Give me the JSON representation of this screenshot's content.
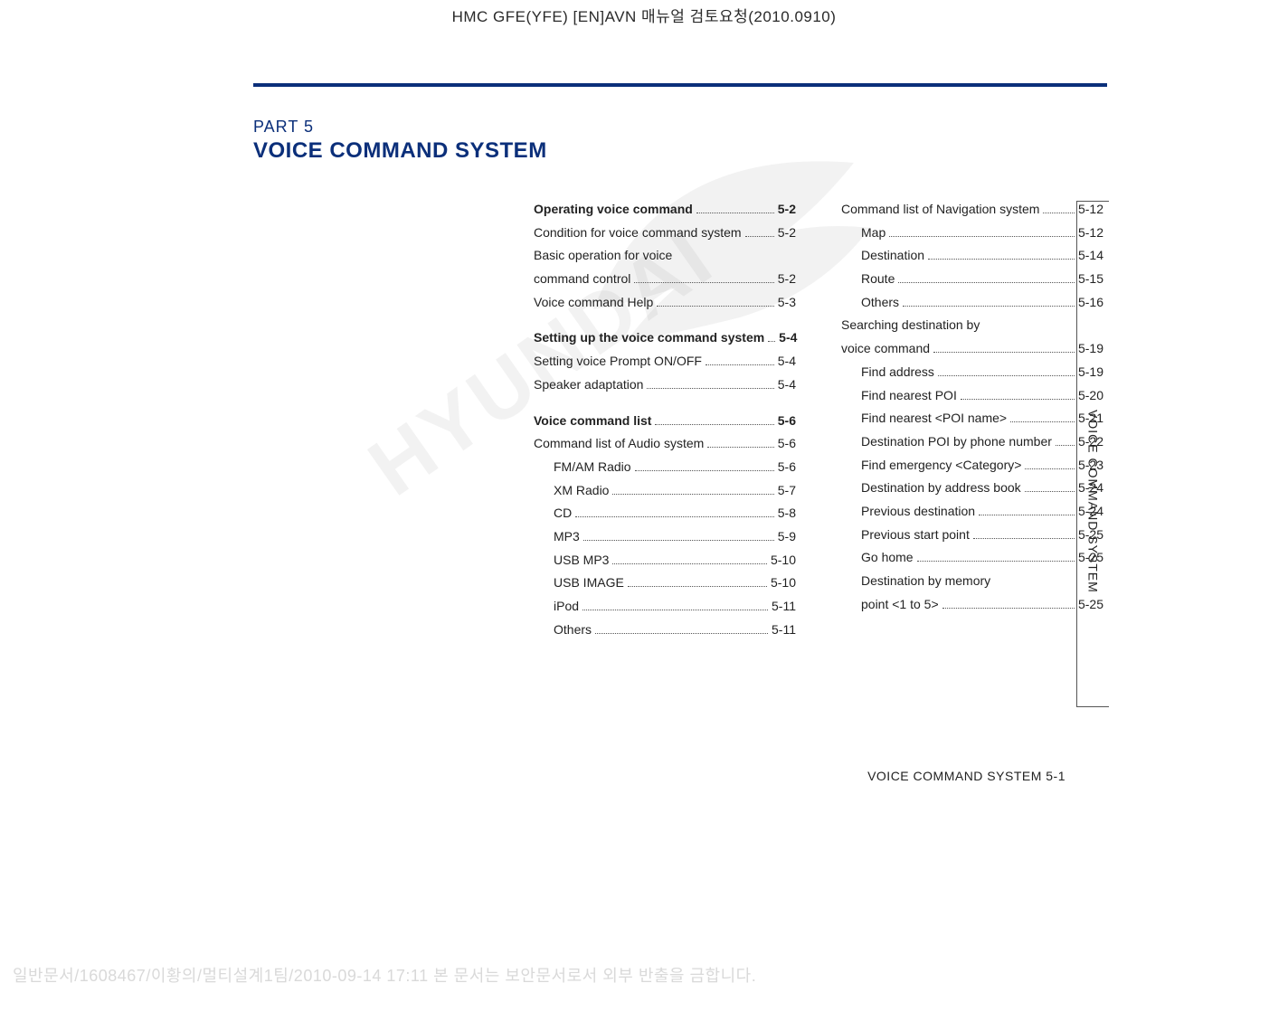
{
  "header": {
    "doc_title": "HMC GFE(YFE) [EN]AVN 매뉴얼 검토요청(2010.0910)"
  },
  "part": {
    "label": "PART 5",
    "title": "VOICE COMMAND SYSTEM"
  },
  "side_tab": "VOICE COMMAND SYSTEM",
  "page_footer": "VOICE COMMAND SYSTEM   5-1",
  "bottom_security": "일반문서/1608467/이황의/멀티설계1팀/2010-09-14 17:11 본 문서는 보안문서로서 외부 반출을 금합니다.",
  "watermark_text": "HYUNDAI",
  "toc": {
    "col1": [
      {
        "label": "Operating voice command",
        "page": "5-2",
        "type": "heading"
      },
      {
        "label": "Condition for voice command system",
        "page": "5-2",
        "type": "normal"
      },
      {
        "label": "Basic operation for voice",
        "page": "",
        "type": "no-page"
      },
      {
        "label": "command control",
        "page": "5-2",
        "type": "normal"
      },
      {
        "label": "Voice command Help",
        "page": "5-3",
        "type": "normal"
      },
      {
        "label": "Setting up the voice command system",
        "page": "5-4",
        "type": "heading section-gap"
      },
      {
        "label": "Setting voice Prompt ON/OFF",
        "page": "5-4",
        "type": "normal"
      },
      {
        "label": "Speaker adaptation",
        "page": "5-4",
        "type": "normal"
      },
      {
        "label": "Voice command list",
        "page": "5-6",
        "type": "heading section-gap"
      },
      {
        "label": "Command list of Audio system",
        "page": "5-6",
        "type": "normal"
      },
      {
        "label": "FM/AM Radio",
        "page": "5-6",
        "type": "sub"
      },
      {
        "label": "XM Radio",
        "page": "5-7",
        "type": "sub"
      },
      {
        "label": "CD",
        "page": "5-8",
        "type": "sub"
      },
      {
        "label": "MP3",
        "page": "5-9",
        "type": "sub"
      },
      {
        "label": "USB MP3",
        "page": "5-10",
        "type": "sub"
      },
      {
        "label": "USB IMAGE",
        "page": "5-10",
        "type": "sub"
      },
      {
        "label": "iPod",
        "page": "5-11",
        "type": "sub"
      },
      {
        "label": "Others",
        "page": "5-11",
        "type": "sub"
      }
    ],
    "col2": [
      {
        "label": "Command list of Navigation system",
        "page": "5-12",
        "type": "normal"
      },
      {
        "label": "Map",
        "page": "5-12",
        "type": "sub"
      },
      {
        "label": "Destination",
        "page": "5-14",
        "type": "sub"
      },
      {
        "label": "Route",
        "page": "5-15",
        "type": "sub"
      },
      {
        "label": "Others",
        "page": "5-16",
        "type": "sub"
      },
      {
        "label": "Searching destination by",
        "page": "",
        "type": "no-page"
      },
      {
        "label": "voice command",
        "page": "5-19",
        "type": "normal"
      },
      {
        "label": "Find address",
        "page": "5-19",
        "type": "sub"
      },
      {
        "label": "Find nearest POI",
        "page": "5-20",
        "type": "sub"
      },
      {
        "label": "Find nearest <POI name>",
        "page": "5-21",
        "type": "sub"
      },
      {
        "label": "Destination POI by phone number",
        "page": "5-22",
        "type": "sub"
      },
      {
        "label": "Find emergency <Category>",
        "page": "5-23",
        "type": "sub"
      },
      {
        "label": "Destination by address book",
        "page": "5-24",
        "type": "sub"
      },
      {
        "label": "Previous destination",
        "page": "5-24",
        "type": "sub"
      },
      {
        "label": "Previous start point",
        "page": "5-25",
        "type": "sub"
      },
      {
        "label": "Go home",
        "page": "5-25",
        "type": "sub"
      },
      {
        "label": "Destination by memory",
        "page": "",
        "type": "no-page sub"
      },
      {
        "label": "point <1 to 5>",
        "page": "5-25",
        "type": "sub"
      }
    ]
  },
  "colors": {
    "brand_blue": "#0b2f7a",
    "text": "#222222",
    "security_text": "#d9d9d9"
  }
}
